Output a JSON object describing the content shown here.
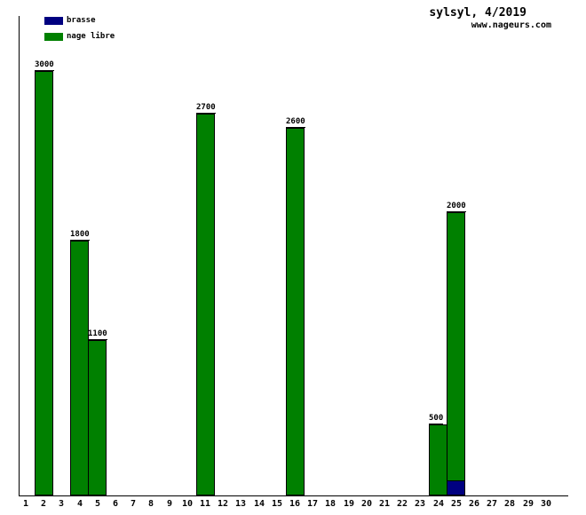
{
  "title": "sylsyl, 4/2019",
  "website": "www.nageurs.com",
  "legend": [
    {
      "label": "brasse",
      "color": "#000080"
    },
    {
      "label": "nage libre",
      "color": "#008000"
    }
  ],
  "colors": {
    "axis": "#000000",
    "bar_border": "#000000",
    "background": "#ffffff"
  },
  "chart_data": {
    "type": "bar",
    "stacked": true,
    "title": "sylsyl, 4/2019",
    "xlabel": "",
    "ylabel": "",
    "ylim": [
      0,
      3400
    ],
    "grid": false,
    "legend_position": "top-left",
    "categories": [
      "1",
      "2",
      "3",
      "4",
      "5",
      "6",
      "7",
      "8",
      "9",
      "10",
      "11",
      "12",
      "13",
      "14",
      "15",
      "16",
      "17",
      "18",
      "19",
      "20",
      "21",
      "22",
      "23",
      "24",
      "25",
      "26",
      "27",
      "28",
      "29",
      "30"
    ],
    "series": [
      {
        "name": "brasse",
        "color": "#000080",
        "values": [
          0,
          0,
          0,
          0,
          0,
          0,
          0,
          0,
          0,
          0,
          0,
          0,
          0,
          0,
          0,
          0,
          0,
          0,
          0,
          0,
          0,
          0,
          0,
          0,
          100,
          0,
          0,
          0,
          0,
          0
        ]
      },
      {
        "name": "nage libre",
        "color": "#008000",
        "values": [
          0,
          3000,
          0,
          1800,
          1100,
          0,
          0,
          0,
          0,
          0,
          2700,
          0,
          0,
          0,
          0,
          2600,
          0,
          0,
          0,
          0,
          0,
          0,
          0,
          500,
          1900,
          0,
          0,
          0,
          0,
          0
        ]
      }
    ],
    "total_labels": [
      "",
      "3000",
      "",
      "1800",
      "1100",
      "",
      "",
      "",
      "",
      "",
      "2700",
      "",
      "",
      "",
      "",
      "2600",
      "",
      "",
      "",
      "",
      "",
      "",
      "",
      "500",
      "2000",
      "",
      "",
      "",
      "",
      ""
    ]
  }
}
